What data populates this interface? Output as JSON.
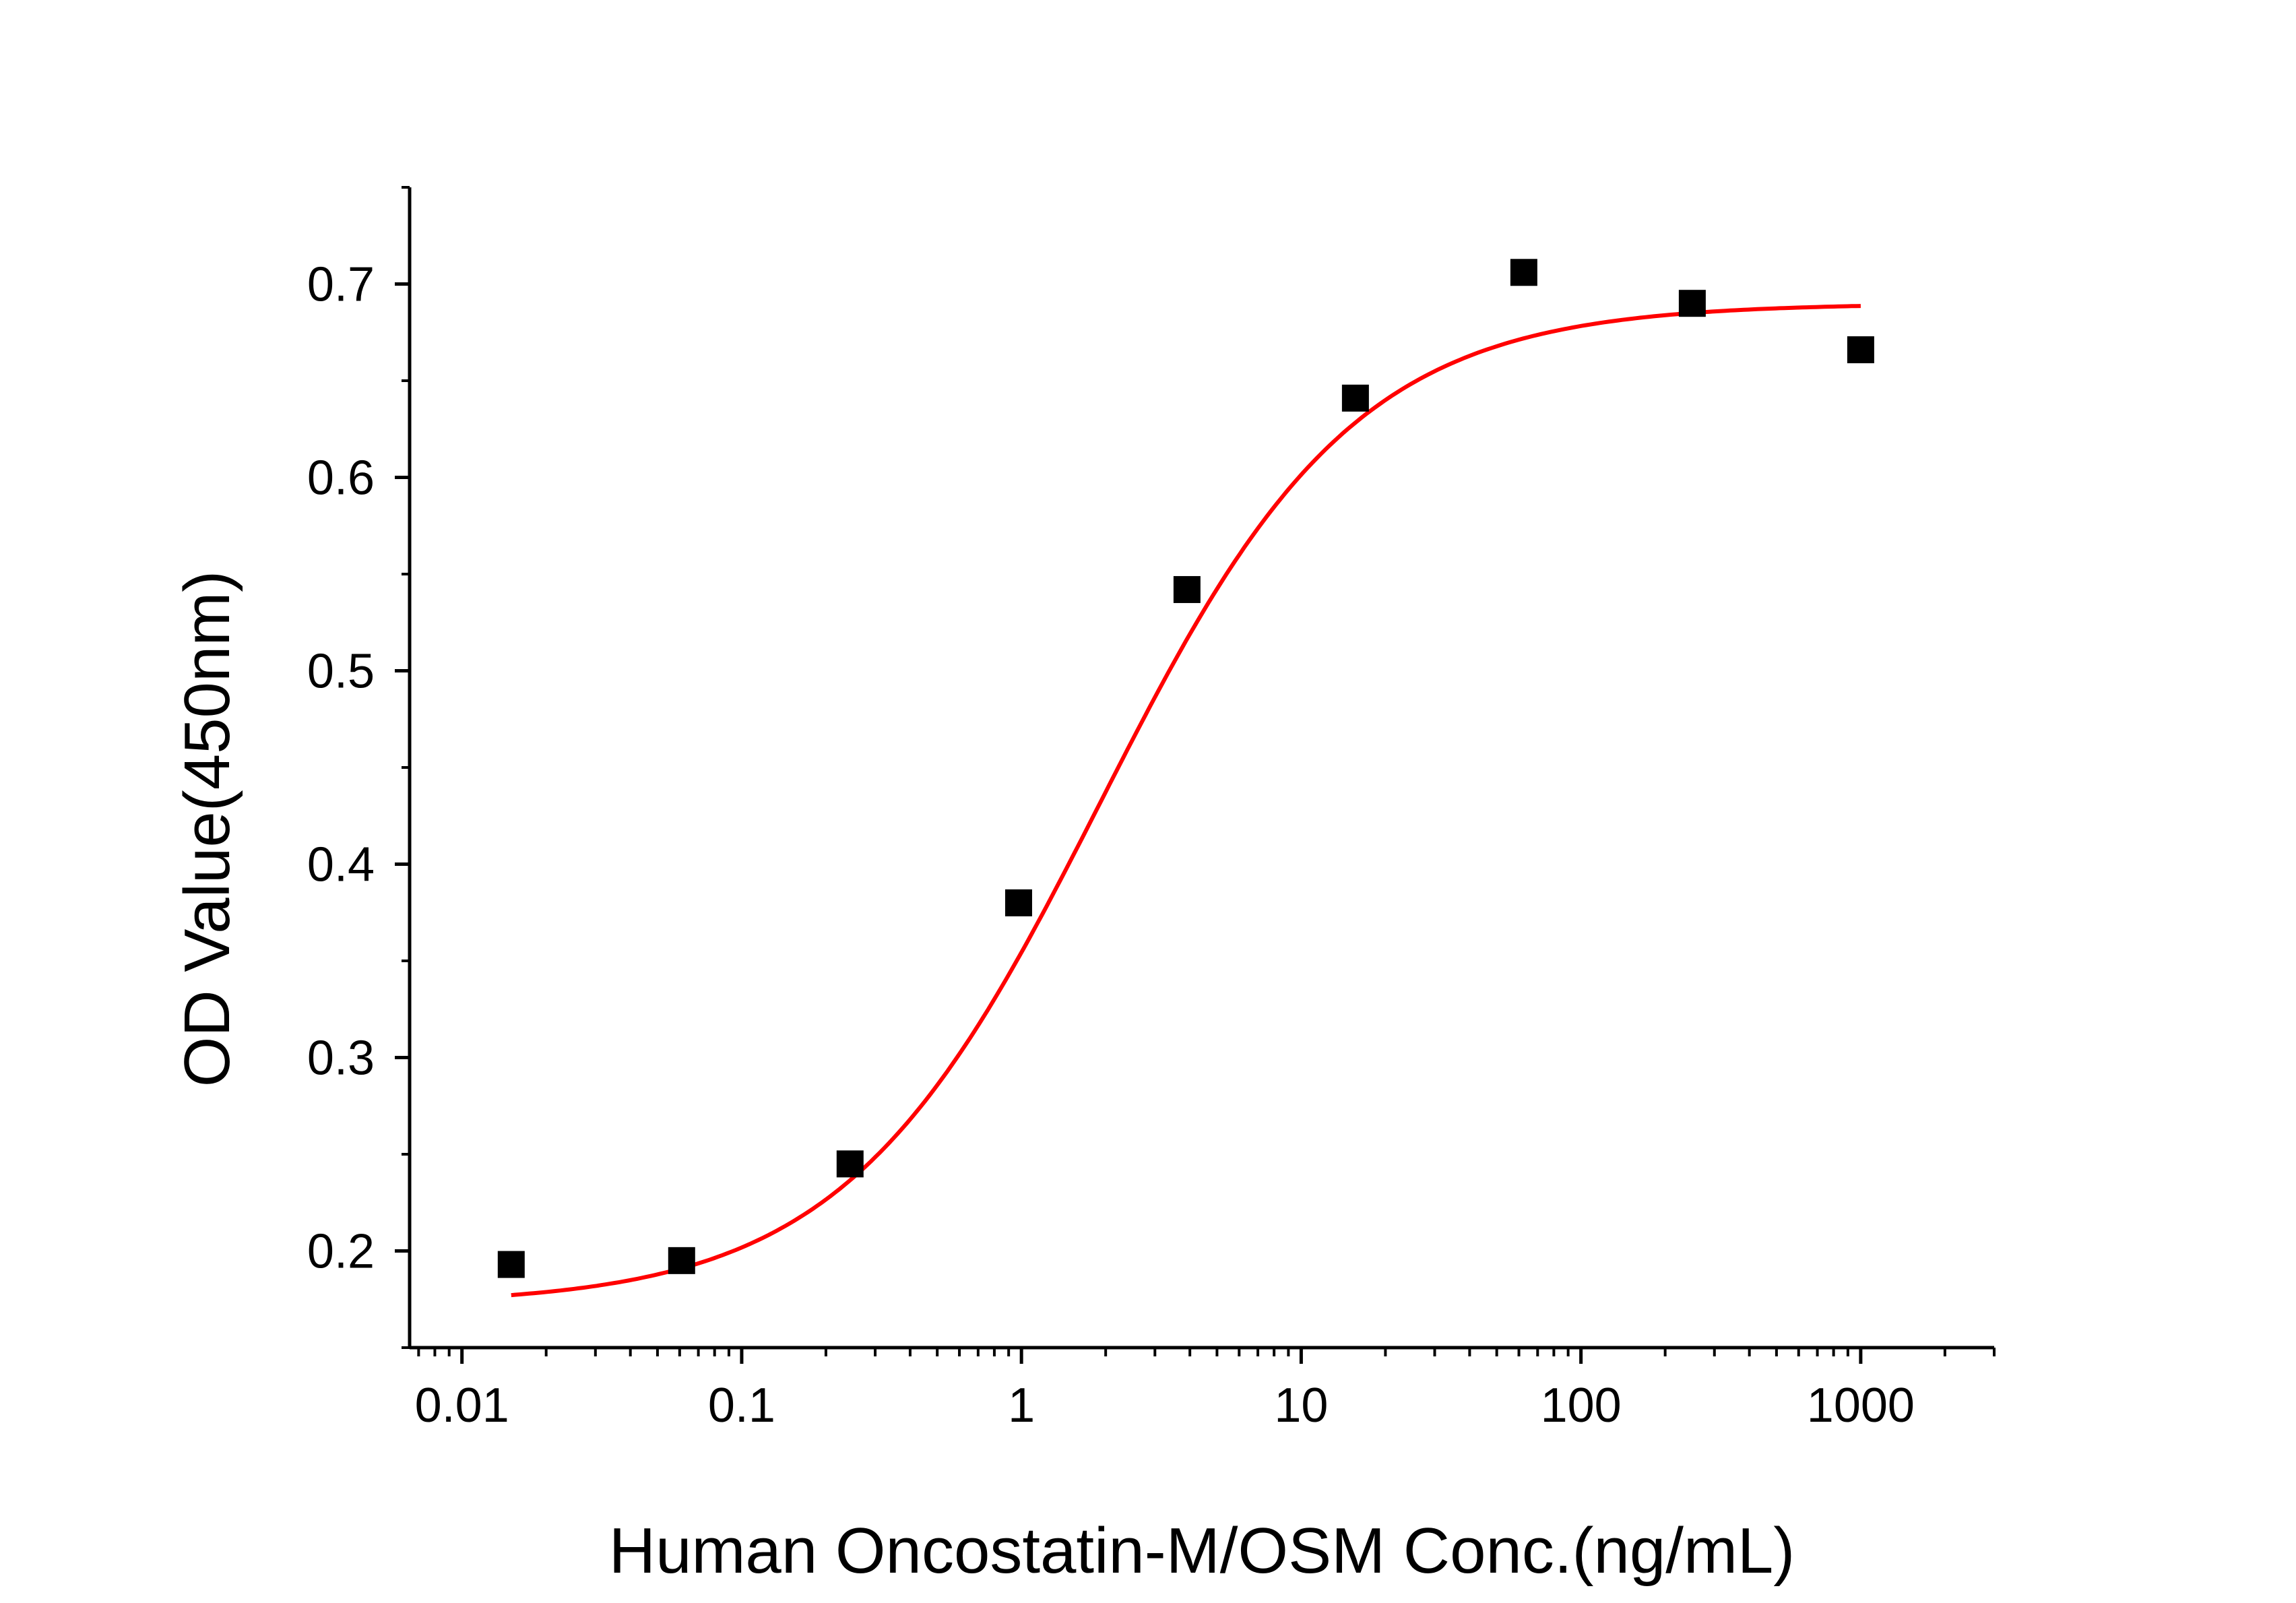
{
  "chart_data": {
    "type": "scatter",
    "title": "",
    "xlabel": "Human Oncostatin-M/OSM Conc.(ng/mL)",
    "ylabel": "OD Value(450nm)",
    "x_scale": "log",
    "xlim": [
      0.0065,
      3000
    ],
    "ylim": [
      0.15,
      0.75
    ],
    "x_ticks": [
      0.01,
      0.1,
      1,
      10,
      100,
      1000
    ],
    "x_tick_labels": [
      "0.01",
      "0.1",
      "1",
      "10",
      "100",
      "1000"
    ],
    "y_ticks": [
      0.2,
      0.3,
      0.4,
      0.5,
      0.6,
      0.7
    ],
    "y_tick_labels": [
      "0.2",
      "0.3",
      "0.4",
      "0.5",
      "0.6",
      "0.7"
    ],
    "grid": false,
    "legend": "none",
    "series": [
      {
        "type": "scatter",
        "marker": "square",
        "color": "#000000",
        "x": [
          0.015,
          0.061,
          0.244,
          0.977,
          3.906,
          15.625,
          62.5,
          250,
          1000
        ],
        "y": [
          0.193,
          0.195,
          0.245,
          0.38,
          0.542,
          0.641,
          0.706,
          0.69,
          0.666
        ]
      },
      {
        "type": "line",
        "color": "#ff0000",
        "fit": "four-parameter logistic",
        "x_range": [
          0.015,
          1000
        ],
        "params": {
          "bottom": 0.172,
          "top": 0.69,
          "ec50": 1.9,
          "hill": 0.95
        }
      }
    ]
  }
}
